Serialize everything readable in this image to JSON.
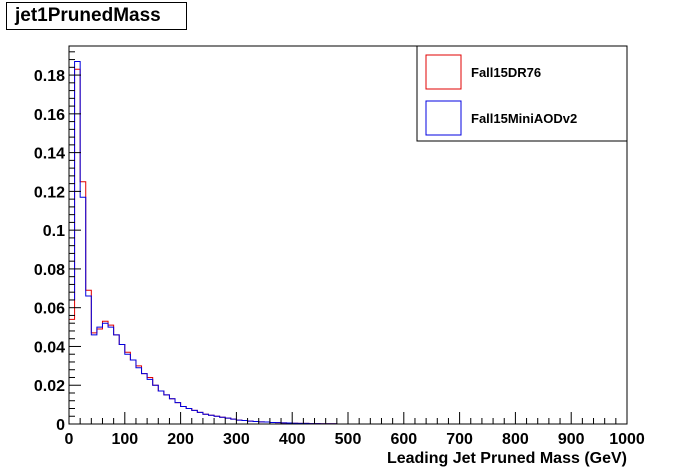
{
  "chart_data": {
    "type": "histogram",
    "title": "jet1PrunedMass",
    "xlabel": "Leading Jet Pruned Mass (GeV)",
    "ylabel": "",
    "xlim": [
      0,
      1000
    ],
    "ylim": [
      0,
      0.195
    ],
    "xticks": [
      "0",
      "100",
      "200",
      "300",
      "400",
      "500",
      "600",
      "700",
      "800",
      "900",
      "1000"
    ],
    "yticks": [
      "0",
      "0.02",
      "0.04",
      "0.06",
      "0.08",
      "0.1",
      "0.12",
      "0.14",
      "0.16",
      "0.18"
    ],
    "bin_width": 10,
    "legend_position": "top-right",
    "series": [
      {
        "name": "Fall15DR76",
        "color": "#e00000",
        "values": [
          0.054,
          0.183,
          0.125,
          0.069,
          0.047,
          0.049,
          0.053,
          0.051,
          0.046,
          0.041,
          0.037,
          0.033,
          0.03,
          0.026,
          0.024,
          0.02,
          0.017,
          0.015,
          0.013,
          0.011,
          0.009,
          0.008,
          0.007,
          0.006,
          0.005,
          0.0045,
          0.004,
          0.0035,
          0.003,
          0.0025,
          0.002,
          0.0018,
          0.0015,
          0.0013,
          0.0011,
          0.001,
          0.0008,
          0.0007,
          0.0006,
          0.0005,
          0.0004,
          0.0003,
          0.0003,
          0.0002,
          0.0002,
          0.0001,
          0.0001,
          0.0001,
          0,
          0,
          0,
          0,
          0,
          0,
          0,
          0,
          0,
          0,
          0,
          0,
          0,
          0,
          0,
          0,
          0,
          0,
          0,
          0,
          0,
          0,
          0,
          0,
          0,
          0,
          0,
          0,
          0,
          0,
          0,
          0,
          0,
          0,
          0,
          0,
          0,
          0,
          0,
          0,
          0,
          0,
          0,
          0,
          0,
          0,
          0,
          0,
          0,
          0,
          0,
          0
        ]
      },
      {
        "name": "Fall15MiniAODv2",
        "color": "#0000e0",
        "values": [
          0.064,
          0.187,
          0.117,
          0.066,
          0.046,
          0.05,
          0.052,
          0.05,
          0.046,
          0.041,
          0.036,
          0.033,
          0.029,
          0.026,
          0.023,
          0.02,
          0.017,
          0.015,
          0.013,
          0.011,
          0.009,
          0.008,
          0.007,
          0.006,
          0.005,
          0.0045,
          0.004,
          0.0035,
          0.003,
          0.0025,
          0.002,
          0.0018,
          0.0015,
          0.0013,
          0.0011,
          0.001,
          0.0008,
          0.0007,
          0.0006,
          0.0005,
          0.0004,
          0.0003,
          0.0003,
          0.0002,
          0.0002,
          0.0001,
          0.0001,
          0.0001,
          0,
          0,
          0,
          0,
          0,
          0,
          0,
          0,
          0,
          0,
          0,
          0,
          0,
          0,
          0,
          0,
          0,
          0,
          0,
          0,
          0,
          0,
          0,
          0,
          0,
          0,
          0,
          0,
          0,
          0,
          0,
          0,
          0,
          0,
          0,
          0,
          0,
          0,
          0,
          0,
          0,
          0,
          0,
          0,
          0,
          0,
          0,
          0,
          0,
          0,
          0,
          0
        ]
      }
    ]
  }
}
